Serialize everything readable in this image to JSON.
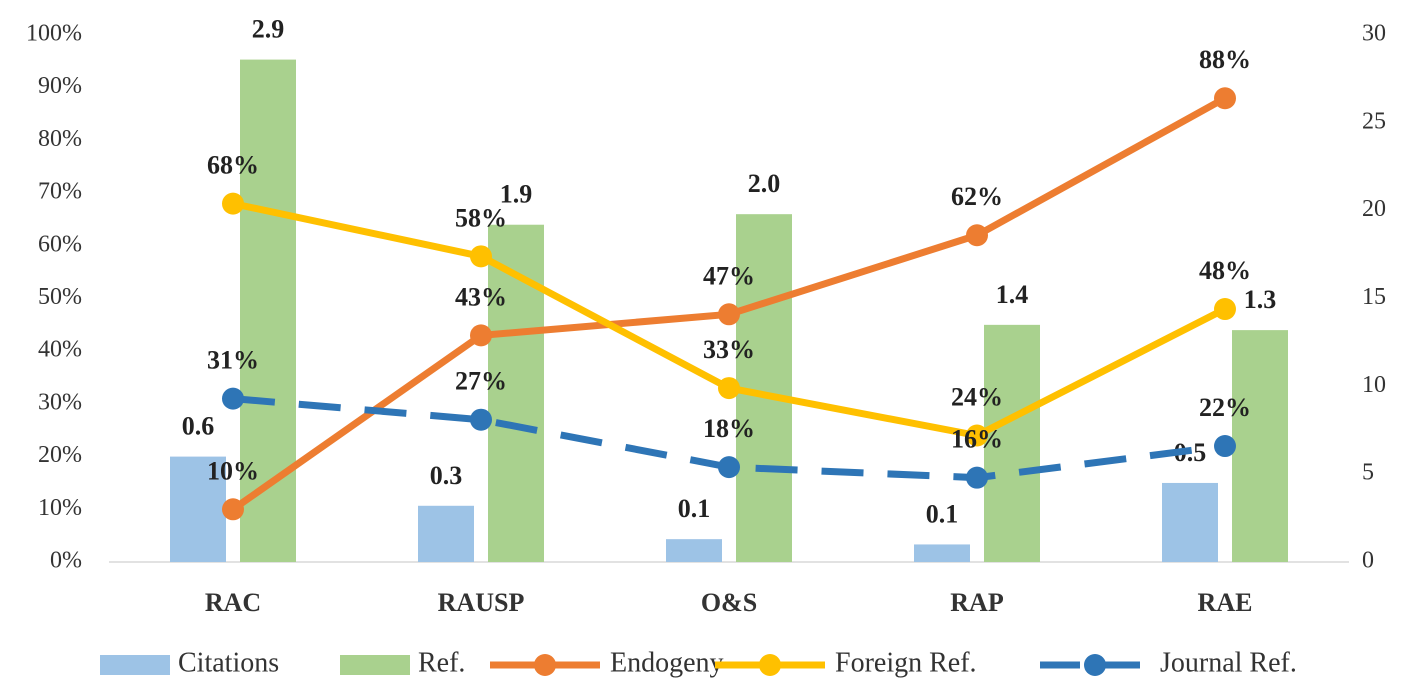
{
  "chart_data": {
    "type": "combo",
    "categories": [
      "RAC",
      "RAUSP",
      "O&S",
      "RAP",
      "RAE"
    ],
    "ylim": [
      0,
      100
    ],
    "yticks": [
      {
        "value": 0,
        "label": "0%"
      },
      {
        "value": 10,
        "label": "10%"
      },
      {
        "value": 20,
        "label": "20%"
      },
      {
        "value": 30,
        "label": "30%"
      },
      {
        "value": 40,
        "label": "40%"
      },
      {
        "value": 50,
        "label": "50%"
      },
      {
        "value": 60,
        "label": "60%"
      },
      {
        "value": 70,
        "label": "70%"
      },
      {
        "value": 80,
        "label": "80%"
      },
      {
        "value": 90,
        "label": "90%"
      },
      {
        "value": 100,
        "label": "100%"
      }
    ],
    "y2lim": [
      0,
      30
    ],
    "y2ticks": [
      0,
      5,
      10,
      15,
      20,
      25,
      30
    ],
    "legend": "bottom",
    "series": [
      {
        "name": "Citations",
        "type": "bar",
        "axis": "y2",
        "color": "#9dc3e6",
        "values": [
          6.0,
          3.2,
          1.3,
          1.0,
          4.5
        ],
        "value_labels": [
          "0.6",
          "0.3",
          "0.1",
          "0.1",
          "0.5"
        ]
      },
      {
        "name": "Ref.",
        "type": "bar",
        "axis": "y2",
        "color": "#a9d18e",
        "values": [
          28.6,
          19.2,
          19.8,
          13.5,
          13.2
        ],
        "value_labels": [
          "2.9",
          "1.9",
          "2.0",
          "1.4",
          "1.3"
        ]
      },
      {
        "name": "Endogeny",
        "type": "line",
        "color": "#ed7d31",
        "line_style": "solid",
        "values": [
          10,
          43,
          47,
          62,
          88
        ],
        "value_labels": [
          "10%",
          "43%",
          "47%",
          "62%",
          "88%"
        ]
      },
      {
        "name": "Foreign Ref.",
        "type": "line",
        "color": "#ffc000",
        "line_style": "solid",
        "values": [
          68,
          58,
          33,
          24,
          48
        ],
        "value_labels": [
          "68%",
          "58%",
          "33%",
          "24%",
          "48%"
        ]
      },
      {
        "name": "Journal Ref.",
        "type": "line",
        "color": "#2e75b6",
        "line_style": "dashed",
        "values": [
          31,
          27,
          18,
          16,
          22
        ],
        "value_labels": [
          "31%",
          "27%",
          "18%",
          "16%",
          "22%"
        ]
      }
    ]
  }
}
